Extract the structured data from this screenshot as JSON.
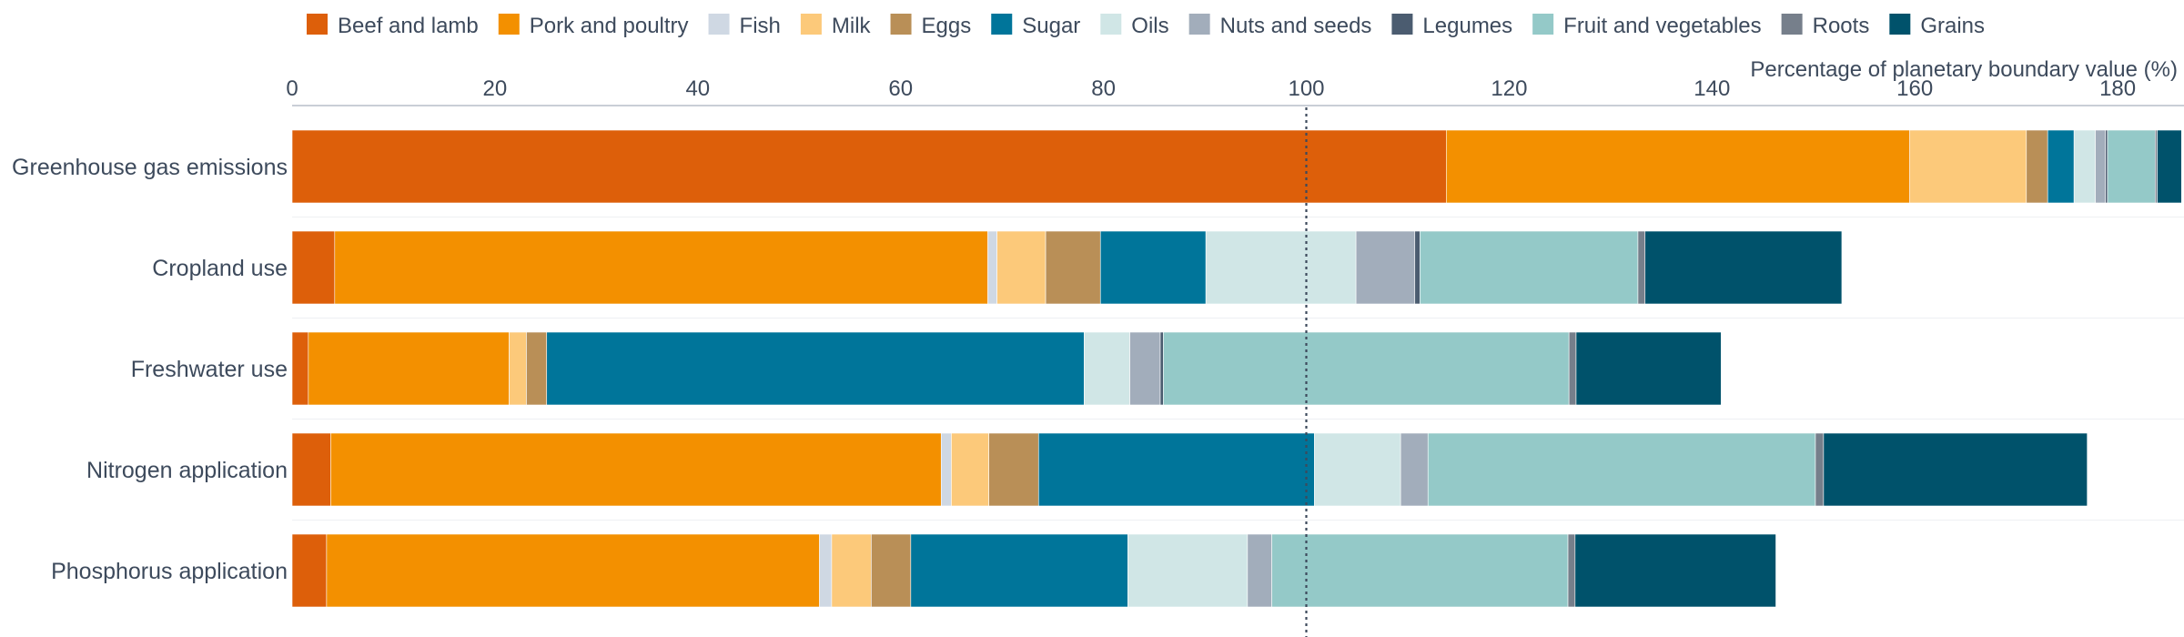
{
  "chart_data": {
    "type": "bar",
    "orientation": "horizontal",
    "stacked": true,
    "xlabel": "Percentage of planetary boundary value (%)",
    "xlim": [
      0,
      186
    ],
    "xticks": [
      0,
      20,
      40,
      60,
      80,
      100,
      120,
      140,
      160,
      180
    ],
    "reference_line": {
      "value": 100,
      "style": "dotted"
    },
    "categories": [
      "Greenhouse gas emissions",
      "Cropland use",
      "Freshwater use",
      "Nitrogen application",
      "Phosphorus application"
    ],
    "series": [
      {
        "name": "Beef and lamb",
        "color": "#dd5f0a",
        "values": [
          113.8,
          4.2,
          1.6,
          3.8,
          3.4
        ]
      },
      {
        "name": "Pork and poultry",
        "color": "#f39000",
        "values": [
          45.7,
          64.4,
          19.8,
          60.2,
          48.6
        ]
      },
      {
        "name": "Fish",
        "color": "#cfd8e3",
        "values": [
          0.0,
          0.9,
          0.0,
          1.0,
          1.2
        ]
      },
      {
        "name": "Milk",
        "color": "#fcc97a",
        "values": [
          11.5,
          4.8,
          1.7,
          3.7,
          3.9
        ]
      },
      {
        "name": "Eggs",
        "color": "#b98f57",
        "values": [
          2.1,
          5.4,
          2.0,
          4.9,
          3.9
        ]
      },
      {
        "name": "Sugar",
        "color": "#00759a",
        "values": [
          2.6,
          10.4,
          53.0,
          27.2,
          21.4
        ]
      },
      {
        "name": "Oils",
        "color": "#d0e6e6",
        "values": [
          2.1,
          14.8,
          4.5,
          8.5,
          11.8
        ]
      },
      {
        "name": "Nuts and seeds",
        "color": "#a2adbb",
        "values": [
          1.0,
          5.8,
          3.0,
          2.7,
          2.4
        ]
      },
      {
        "name": "Legumes",
        "color": "#4b5c70",
        "values": [
          0.2,
          0.5,
          0.3,
          0.0,
          0.0
        ]
      },
      {
        "name": "Fruit and vegetables",
        "color": "#94c9c8",
        "values": [
          4.7,
          21.5,
          40.0,
          38.2,
          29.2
        ]
      },
      {
        "name": "Roots",
        "color": "#767f8b",
        "values": [
          0.2,
          0.7,
          0.7,
          0.8,
          0.7
        ]
      },
      {
        "name": "Grains",
        "color": "#00526b",
        "values": [
          2.4,
          19.4,
          14.3,
          26.0,
          19.8
        ]
      }
    ],
    "legend_position": "top",
    "grid": false
  }
}
